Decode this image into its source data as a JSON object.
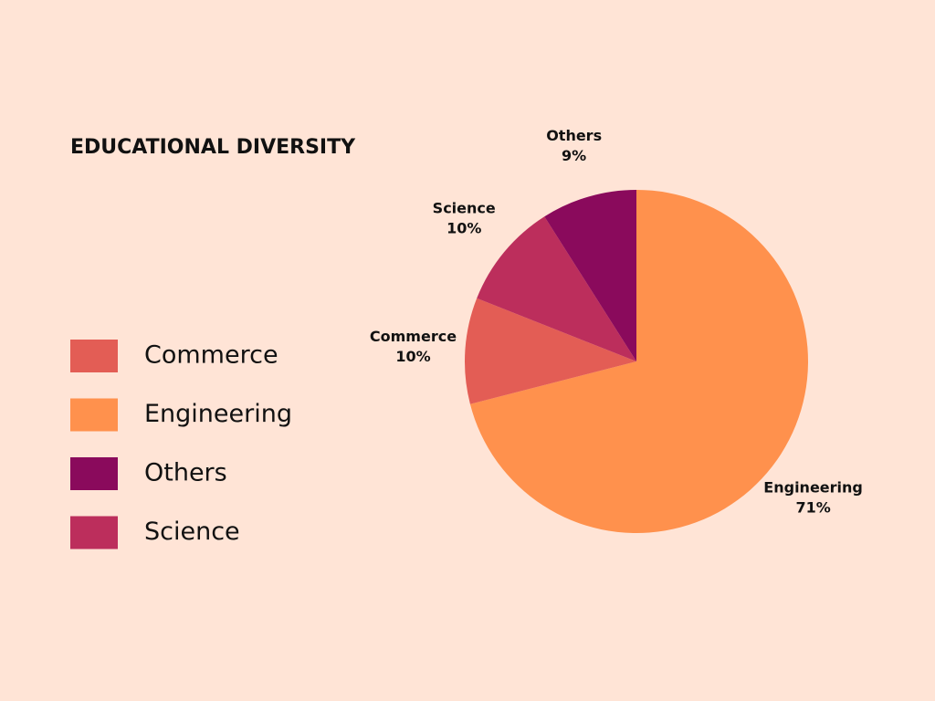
{
  "chart_data": {
    "type": "pie",
    "title": "EDUCATIONAL DIVERSITY",
    "categories": [
      "Commerce",
      "Engineering",
      "Others",
      "Science"
    ],
    "values": [
      10,
      71,
      9,
      10
    ],
    "value_labels": [
      "10%",
      "71%",
      "9%",
      "10%"
    ],
    "colors": [
      "#e35d55",
      "#ff914d",
      "#8a0a5c",
      "#bc2e5c"
    ],
    "legend": "left"
  }
}
